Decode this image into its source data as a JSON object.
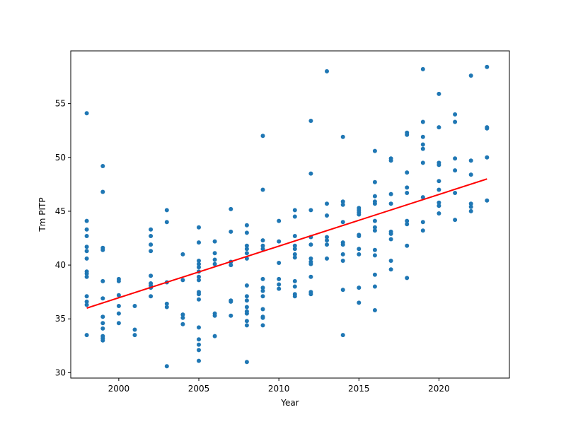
{
  "chart_data": {
    "type": "scatter",
    "title": "",
    "xlabel": "Year",
    "ylabel": "Tm PITP",
    "xlim": [
      1997.0,
      2024.4
    ],
    "ylim": [
      29.5,
      59.9
    ],
    "xticks": [
      2000,
      2005,
      2010,
      2015,
      2020
    ],
    "yticks": [
      30,
      35,
      40,
      45,
      50,
      55
    ],
    "grid": false,
    "legend": "none",
    "point_color": "#1f77b4",
    "line_color": "#ff0000",
    "points": [
      [
        1998,
        54.1
      ],
      [
        1998,
        44.1
      ],
      [
        1998,
        43.3
      ],
      [
        1998,
        42.7
      ],
      [
        1998,
        41.7
      ],
      [
        1998,
        41.3
      ],
      [
        1998,
        40.6
      ],
      [
        1998,
        39.4
      ],
      [
        1998,
        39.2
      ],
      [
        1998,
        38.9
      ],
      [
        1998,
        37.1
      ],
      [
        1998,
        36.6
      ],
      [
        1998,
        36.3
      ],
      [
        1998,
        33.5
      ],
      [
        1999,
        49.2
      ],
      [
        1999,
        46.8
      ],
      [
        1999,
        41.6
      ],
      [
        1999,
        41.4
      ],
      [
        1999,
        38.5
      ],
      [
        1999,
        36.9
      ],
      [
        1999,
        35.2
      ],
      [
        1999,
        34.6
      ],
      [
        1999,
        34.1
      ],
      [
        1999,
        33.4
      ],
      [
        1999,
        33.2
      ],
      [
        1999,
        33.0
      ],
      [
        2000,
        38.7
      ],
      [
        2000,
        38.5
      ],
      [
        2000,
        37.2
      ],
      [
        2000,
        36.2
      ],
      [
        2000,
        35.5
      ],
      [
        2000,
        34.6
      ],
      [
        2001,
        36.2
      ],
      [
        2001,
        34.0
      ],
      [
        2001,
        33.5
      ],
      [
        2002,
        43.3
      ],
      [
        2002,
        42.7
      ],
      [
        2002,
        41.9
      ],
      [
        2002,
        41.3
      ],
      [
        2002,
        39.0
      ],
      [
        2002,
        38.3
      ],
      [
        2002,
        38.1
      ],
      [
        2002,
        37.9
      ],
      [
        2002,
        37.1
      ],
      [
        2003,
        45.1
      ],
      [
        2003,
        44.0
      ],
      [
        2003,
        38.4
      ],
      [
        2003,
        36.4
      ],
      [
        2003,
        36.1
      ],
      [
        2003,
        30.6
      ],
      [
        2004,
        41.0
      ],
      [
        2004,
        38.6
      ],
      [
        2004,
        35.4
      ],
      [
        2004,
        35.1
      ],
      [
        2004,
        34.5
      ],
      [
        2005,
        43.5
      ],
      [
        2005,
        42.1
      ],
      [
        2005,
        40.4
      ],
      [
        2005,
        40.1
      ],
      [
        2005,
        39.8
      ],
      [
        2005,
        39.4
      ],
      [
        2005,
        38.9
      ],
      [
        2005,
        38.6
      ],
      [
        2005,
        37.5
      ],
      [
        2005,
        37.3
      ],
      [
        2005,
        36.8
      ],
      [
        2005,
        34.2
      ],
      [
        2005,
        33.1
      ],
      [
        2005,
        32.6
      ],
      [
        2005,
        32.1
      ],
      [
        2005,
        31.1
      ],
      [
        2006,
        42.2
      ],
      [
        2006,
        41.1
      ],
      [
        2006,
        40.5
      ],
      [
        2006,
        40.1
      ],
      [
        2006,
        35.5
      ],
      [
        2006,
        35.3
      ],
      [
        2006,
        33.4
      ],
      [
        2007,
        45.2
      ],
      [
        2007,
        43.1
      ],
      [
        2007,
        40.3
      ],
      [
        2007,
        40.0
      ],
      [
        2007,
        36.7
      ],
      [
        2007,
        36.6
      ],
      [
        2007,
        35.3
      ],
      [
        2008,
        43.7
      ],
      [
        2008,
        43.0
      ],
      [
        2008,
        41.8
      ],
      [
        2008,
        41.5
      ],
      [
        2008,
        41.1
      ],
      [
        2008,
        40.6
      ],
      [
        2008,
        38.1
      ],
      [
        2008,
        37.1
      ],
      [
        2008,
        36.7
      ],
      [
        2008,
        36.1
      ],
      [
        2008,
        35.7
      ],
      [
        2008,
        35.5
      ],
      [
        2008,
        34.8
      ],
      [
        2008,
        34.4
      ],
      [
        2008,
        31.0
      ],
      [
        2009,
        52.0
      ],
      [
        2009,
        47.0
      ],
      [
        2009,
        42.3
      ],
      [
        2009,
        41.8
      ],
      [
        2009,
        41.5
      ],
      [
        2009,
        38.7
      ],
      [
        2009,
        37.9
      ],
      [
        2009,
        37.6
      ],
      [
        2009,
        37.1
      ],
      [
        2009,
        35.9
      ],
      [
        2009,
        35.2
      ],
      [
        2009,
        35.1
      ],
      [
        2009,
        34.4
      ],
      [
        2010,
        44.1
      ],
      [
        2010,
        42.2
      ],
      [
        2010,
        40.2
      ],
      [
        2010,
        38.7
      ],
      [
        2010,
        38.2
      ],
      [
        2010,
        37.8
      ],
      [
        2011,
        45.1
      ],
      [
        2011,
        44.5
      ],
      [
        2011,
        42.7
      ],
      [
        2011,
        41.8
      ],
      [
        2011,
        41.5
      ],
      [
        2011,
        41.0
      ],
      [
        2011,
        40.7
      ],
      [
        2011,
        38.5
      ],
      [
        2011,
        38.0
      ],
      [
        2011,
        37.3
      ],
      [
        2011,
        37.1
      ],
      [
        2012,
        53.4
      ],
      [
        2012,
        48.5
      ],
      [
        2012,
        45.1
      ],
      [
        2012,
        42.6
      ],
      [
        2012,
        41.9
      ],
      [
        2012,
        40.6
      ],
      [
        2012,
        40.3
      ],
      [
        2012,
        40.1
      ],
      [
        2012,
        38.9
      ],
      [
        2012,
        37.5
      ],
      [
        2012,
        37.3
      ],
      [
        2013,
        58.0
      ],
      [
        2013,
        45.7
      ],
      [
        2013,
        44.6
      ],
      [
        2013,
        42.6
      ],
      [
        2013,
        42.3
      ],
      [
        2013,
        41.9
      ],
      [
        2013,
        40.6
      ],
      [
        2014,
        51.9
      ],
      [
        2014,
        45.9
      ],
      [
        2014,
        45.6
      ],
      [
        2014,
        44.0
      ],
      [
        2014,
        42.1
      ],
      [
        2014,
        41.9
      ],
      [
        2014,
        41.0
      ],
      [
        2014,
        40.4
      ],
      [
        2014,
        37.7
      ],
      [
        2014,
        33.5
      ],
      [
        2015,
        45.3
      ],
      [
        2015,
        45.1
      ],
      [
        2015,
        44.9
      ],
      [
        2015,
        44.7
      ],
      [
        2015,
        42.8
      ],
      [
        2015,
        42.7
      ],
      [
        2015,
        41.5
      ],
      [
        2015,
        41.0
      ],
      [
        2015,
        37.9
      ],
      [
        2015,
        36.5
      ],
      [
        2016,
        50.6
      ],
      [
        2016,
        47.7
      ],
      [
        2016,
        46.4
      ],
      [
        2016,
        45.9
      ],
      [
        2016,
        45.7
      ],
      [
        2016,
        44.1
      ],
      [
        2016,
        43.5
      ],
      [
        2016,
        43.2
      ],
      [
        2016,
        41.4
      ],
      [
        2016,
        40.9
      ],
      [
        2016,
        39.1
      ],
      [
        2016,
        38.0
      ],
      [
        2016,
        35.8
      ],
      [
        2017,
        49.9
      ],
      [
        2017,
        49.7
      ],
      [
        2017,
        46.6
      ],
      [
        2017,
        45.7
      ],
      [
        2017,
        43.1
      ],
      [
        2017,
        42.9
      ],
      [
        2017,
        42.4
      ],
      [
        2017,
        40.4
      ],
      [
        2017,
        39.6
      ],
      [
        2018,
        52.3
      ],
      [
        2018,
        52.1
      ],
      [
        2018,
        48.6
      ],
      [
        2018,
        47.2
      ],
      [
        2018,
        46.7
      ],
      [
        2018,
        44.1
      ],
      [
        2018,
        43.8
      ],
      [
        2018,
        41.8
      ],
      [
        2018,
        38.8
      ],
      [
        2019,
        58.2
      ],
      [
        2019,
        53.3
      ],
      [
        2019,
        51.9
      ],
      [
        2019,
        51.2
      ],
      [
        2019,
        50.8
      ],
      [
        2019,
        49.5
      ],
      [
        2019,
        46.3
      ],
      [
        2019,
        44.0
      ],
      [
        2019,
        43.2
      ],
      [
        2020,
        55.9
      ],
      [
        2020,
        52.8
      ],
      [
        2020,
        49.5
      ],
      [
        2020,
        49.3
      ],
      [
        2020,
        47.8
      ],
      [
        2020,
        47.0
      ],
      [
        2020,
        45.8
      ],
      [
        2020,
        45.5
      ],
      [
        2020,
        44.8
      ],
      [
        2021,
        54.0
      ],
      [
        2021,
        53.3
      ],
      [
        2021,
        49.9
      ],
      [
        2021,
        48.8
      ],
      [
        2021,
        46.7
      ],
      [
        2021,
        44.2
      ],
      [
        2022,
        57.6
      ],
      [
        2022,
        49.7
      ],
      [
        2022,
        48.4
      ],
      [
        2022,
        45.7
      ],
      [
        2022,
        45.4
      ],
      [
        2022,
        45.0
      ],
      [
        2023,
        58.4
      ],
      [
        2023,
        52.8
      ],
      [
        2023,
        52.7
      ],
      [
        2023,
        50.0
      ],
      [
        2023,
        46.0
      ]
    ],
    "trendline": {
      "x": [
        1998,
        2023
      ],
      "y": [
        36.0,
        48.0
      ]
    }
  }
}
